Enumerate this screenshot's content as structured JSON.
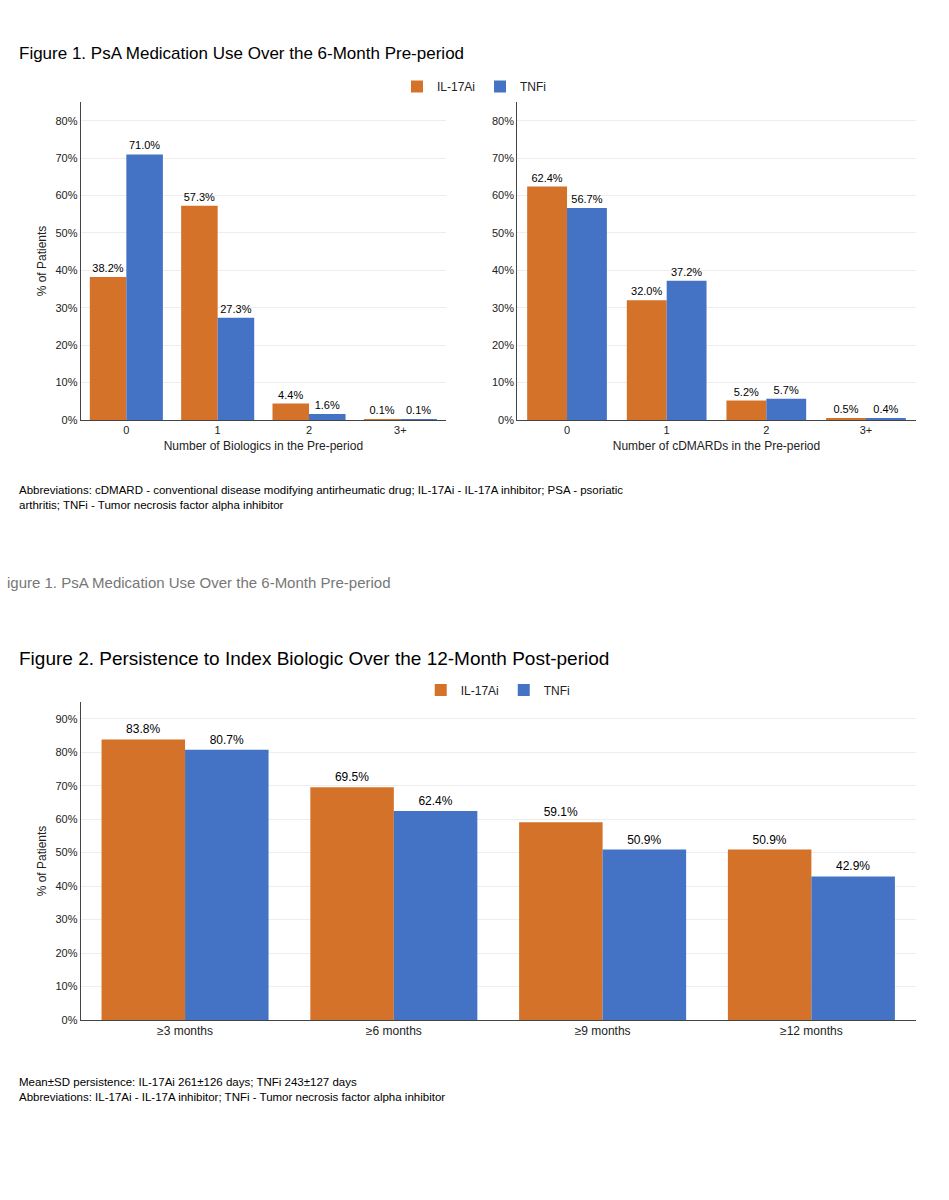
{
  "chart_data": [
    {
      "type": "bar",
      "title": "Figure 1. PsA Medication Use Over the 6-Month Pre-period",
      "xlabel": "Number of Biologics in the Pre-period",
      "ylabel": "% of Patients",
      "categories": [
        "0",
        "1",
        "2",
        "3+"
      ],
      "series": [
        {
          "name": "IL-17Ai",
          "color": "#d4722a",
          "values": [
            38.2,
            57.3,
            4.4,
            0.1
          ],
          "value_labels": [
            "38.2%",
            "57.3%",
            "4.4%",
            "0.1%"
          ]
        },
        {
          "name": "TNFi",
          "color": "#4472c4",
          "values": [
            71.0,
            27.3,
            1.6,
            0.1
          ],
          "value_labels": [
            "71.0%",
            "27.3%",
            "1.6%",
            "0.1%"
          ]
        }
      ],
      "ylim": [
        0,
        85
      ],
      "yticks": [
        {
          "value": 0,
          "label": "0%"
        },
        {
          "value": 10,
          "label": "10%"
        },
        {
          "value": 20,
          "label": "20%"
        },
        {
          "value": 30,
          "label": "30%"
        },
        {
          "value": 40,
          "label": "40%"
        },
        {
          "value": 50,
          "label": "50%"
        },
        {
          "value": 60,
          "label": "60%"
        },
        {
          "value": 70,
          "label": "70%"
        },
        {
          "value": 80,
          "label": "80%"
        }
      ],
      "grid": true,
      "data_labels": true,
      "legend": "top",
      "annotations": [
        "Abbreviations: cDMARD - conventional disease modifying antirheumatic drug; IL-17Ai - IL-17A inhibitor; PSA - psoriatic\narthritis; TNFi - Tumor necrosis factor alpha inhibitor",
        "igure 1. PsA Medication Use Over the 6-Month Pre-period"
      ]
    },
    {
      "type": "bar",
      "xlabel": "Number of cDMARDs in the Pre-period",
      "categories": [
        "0",
        "1",
        "2",
        "3+"
      ],
      "series": [
        {
          "name": "IL-17Ai",
          "color": "#d4722a",
          "values": [
            62.4,
            32.0,
            5.2,
            0.5
          ],
          "value_labels": [
            "62.4%",
            "32.0%",
            "5.2%",
            "0.5%"
          ]
        },
        {
          "name": "TNFi",
          "color": "#4472c4",
          "values": [
            56.7,
            37.2,
            5.7,
            0.4
          ],
          "value_labels": [
            "56.7%",
            "37.2%",
            "5.7%",
            "0.4%"
          ]
        }
      ],
      "ylim": [
        0,
        85
      ],
      "yticks": [
        {
          "value": 0,
          "label": "0%"
        },
        {
          "value": 10,
          "label": "10%"
        },
        {
          "value": 20,
          "label": "20%"
        },
        {
          "value": 30,
          "label": "30%"
        },
        {
          "value": 40,
          "label": "40%"
        },
        {
          "value": 50,
          "label": "50%"
        },
        {
          "value": 60,
          "label": "60%"
        },
        {
          "value": 70,
          "label": "70%"
        },
        {
          "value": 80,
          "label": "80%"
        }
      ],
      "grid": true,
      "data_labels": true
    },
    {
      "type": "bar",
      "title": "Figure 2. Persistence to Index Biologic Over the 12-Month Post-period",
      "ylabel": "% of Patients",
      "categories": [
        "≥3 months",
        "≥6 months",
        "≥9 months",
        "≥12 months"
      ],
      "series": [
        {
          "name": "IL-17Ai",
          "color": "#d4722a",
          "values": [
            83.8,
            69.5,
            59.1,
            50.9
          ],
          "value_labels": [
            "83.8%",
            "69.5%",
            "59.1%",
            "50.9%"
          ]
        },
        {
          "name": "TNFi",
          "color": "#4472c4",
          "values": [
            80.7,
            62.4,
            50.9,
            42.9
          ],
          "value_labels": [
            "80.7%",
            "62.4%",
            "50.9%",
            "42.9%"
          ]
        }
      ],
      "ylim": [
        0,
        95
      ],
      "yticks": [
        {
          "value": 0,
          "label": "0%"
        },
        {
          "value": 10,
          "label": "10%"
        },
        {
          "value": 20,
          "label": "20%"
        },
        {
          "value": 30,
          "label": "30%"
        },
        {
          "value": 40,
          "label": "40%"
        },
        {
          "value": 50,
          "label": "50%"
        },
        {
          "value": 60,
          "label": "60%"
        },
        {
          "value": 70,
          "label": "70%"
        },
        {
          "value": 80,
          "label": "80%"
        },
        {
          "value": 90,
          "label": "90%"
        }
      ],
      "grid": true,
      "data_labels": true,
      "legend": "top",
      "annotations": [
        "Mean±SD persistence: IL-17Ai 261±126 days; TNFi 243±127 days\nAbbreviations: IL-17Ai - IL-17A inhibitor; TNFi - Tumor necrosis factor alpha inhibitor"
      ]
    }
  ]
}
